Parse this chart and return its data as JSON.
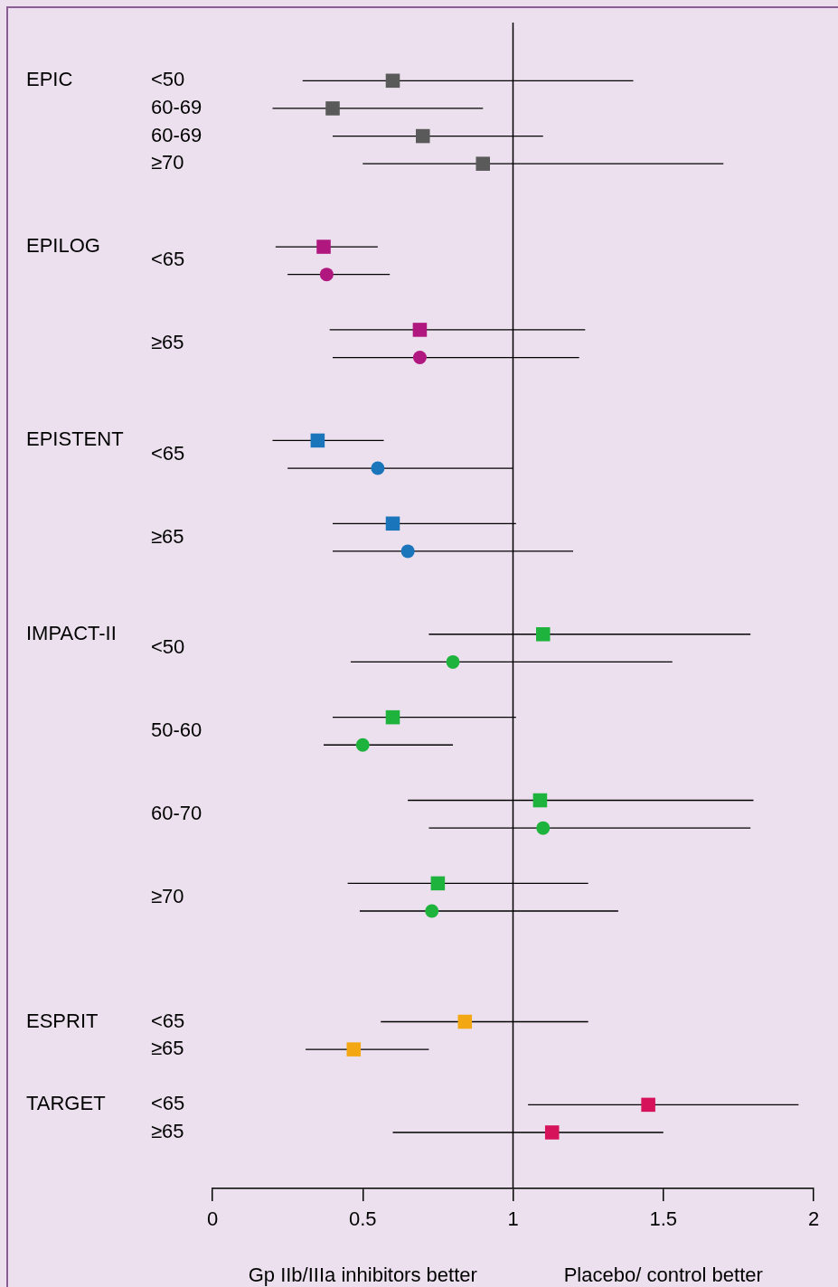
{
  "chart_data": {
    "type": "scatter",
    "orientation": "horizontal",
    "categories": [
      "<50",
      null,
      "60-69",
      null,
      "60-69",
      null,
      "≥70",
      null,
      null,
      null,
      null,
      null,
      null,
      "<65",
      null,
      null,
      null,
      null,
      null,
      "≥65",
      null,
      null,
      null,
      null,
      null,
      null,
      null,
      "<65",
      null,
      null,
      null,
      null,
      null,
      "≥65",
      null,
      null,
      null,
      null,
      null,
      null,
      null,
      "<50",
      null,
      null,
      null,
      null,
      null,
      "50-60",
      null,
      null,
      null,
      null,
      null,
      "60-70",
      null,
      null,
      null,
      null,
      null,
      "≥70",
      null,
      null,
      null,
      null,
      null,
      null,
      null,
      null,
      "<65",
      null,
      "≥65",
      null,
      null,
      null,
      "<65",
      null,
      "≥65"
    ],
    "y2_categories": [
      "EPIC",
      null,
      null,
      null,
      null,
      null,
      null,
      null,
      null,
      null,
      null,
      null,
      "EPILOG",
      null,
      null,
      null,
      null,
      null,
      null,
      null,
      null,
      null,
      null,
      null,
      null,
      null,
      "EPISTENT",
      null,
      null,
      null,
      null,
      null,
      null,
      null,
      null,
      null,
      null,
      null,
      null,
      null,
      "IMPACT-II",
      null,
      null,
      null,
      null,
      null,
      null,
      null,
      null,
      null,
      null,
      null,
      null,
      null,
      null,
      null,
      null,
      null,
      null,
      null,
      null,
      null,
      null,
      null,
      null,
      null,
      null,
      null,
      "ESPRIT",
      null,
      null,
      null,
      null,
      null,
      "TARGET",
      null,
      null
    ],
    "series": [
      {
        "marker": "square",
        "values": [
          0.6,
          null,
          0.4,
          null,
          0.7,
          null,
          0.9,
          null,
          null,
          null,
          null,
          null,
          0.37,
          null,
          null,
          null,
          null,
          null,
          0.69,
          null,
          null,
          null,
          null,
          null,
          null,
          null,
          0.35,
          null,
          null,
          null,
          null,
          null,
          0.6,
          null,
          null,
          null,
          null,
          null,
          null,
          null,
          1.1,
          null,
          null,
          null,
          null,
          null,
          0.6,
          null,
          null,
          null,
          null,
          null,
          1.09,
          null,
          null,
          null,
          null,
          null,
          0.75,
          null,
          null,
          null,
          null,
          null,
          null,
          null,
          null,
          null,
          0.84,
          null,
          0.47,
          null,
          null,
          null,
          1.45,
          null,
          1.13
        ],
        "errors": [
          [
            0.3,
            1.4
          ],
          null,
          [
            0.2,
            0.9
          ],
          null,
          [
            0.4,
            1.1
          ],
          null,
          [
            0.5,
            1.7
          ],
          null,
          null,
          null,
          null,
          null,
          [
            0.21,
            0.55
          ],
          null,
          null,
          null,
          null,
          null,
          [
            0.39,
            1.24
          ],
          null,
          null,
          null,
          null,
          null,
          null,
          null,
          [
            0.2,
            0.57
          ],
          null,
          null,
          null,
          null,
          null,
          [
            0.4,
            1.01
          ],
          null,
          null,
          null,
          null,
          null,
          null,
          null,
          [
            0.72,
            1.79
          ],
          null,
          null,
          null,
          null,
          null,
          [
            0.4,
            1.01
          ],
          null,
          null,
          null,
          null,
          null,
          [
            0.65,
            1.8
          ],
          null,
          null,
          null,
          null,
          null,
          [
            0.45,
            1.25
          ],
          null,
          null,
          null,
          null,
          null,
          null,
          null,
          null,
          null,
          [
            0.56,
            1.25
          ],
          null,
          [
            0.31,
            0.72
          ],
          null,
          null,
          null,
          [
            1.05,
            1.95
          ],
          null,
          [
            0.6,
            1.5
          ]
        ],
        "colors": [
          "#5a5a5a",
          null,
          "#5a5a5a",
          null,
          "#5a5a5a",
          null,
          "#5a5a5a",
          null,
          null,
          null,
          null,
          null,
          "#b0177f",
          null,
          null,
          null,
          null,
          null,
          "#b0177f",
          null,
          null,
          null,
          null,
          null,
          null,
          null,
          "#1a75bb",
          null,
          null,
          null,
          null,
          null,
          "#1a75bb",
          null,
          null,
          null,
          null,
          null,
          null,
          null,
          "#1db33c",
          null,
          null,
          null,
          null,
          null,
          "#1db33c",
          null,
          null,
          null,
          null,
          null,
          "#1db33c",
          null,
          null,
          null,
          null,
          null,
          "#1db33c",
          null,
          null,
          null,
          null,
          null,
          null,
          null,
          null,
          null,
          "#f3a712",
          null,
          "#f3a712",
          null,
          null,
          null,
          "#d6125a",
          null,
          "#d6125a"
        ]
      },
      {
        "marker": "circle",
        "values": [
          null,
          null,
          null,
          null,
          null,
          null,
          null,
          null,
          null,
          null,
          null,
          null,
          null,
          null,
          0.38,
          null,
          null,
          null,
          null,
          null,
          0.69,
          null,
          null,
          null,
          null,
          null,
          null,
          null,
          0.55,
          null,
          null,
          null,
          null,
          null,
          0.65,
          null,
          null,
          null,
          null,
          null,
          null,
          null,
          0.8,
          null,
          null,
          null,
          null,
          null,
          0.5,
          null,
          null,
          null,
          null,
          null,
          1.1,
          null,
          null,
          null,
          null,
          null,
          0.73,
          null,
          null,
          null,
          null,
          null,
          null,
          null,
          null,
          null,
          null,
          null,
          null,
          null,
          null,
          null,
          null
        ],
        "errors": [
          null,
          null,
          null,
          null,
          null,
          null,
          null,
          null,
          null,
          null,
          null,
          null,
          null,
          null,
          [
            0.25,
            0.59
          ],
          null,
          null,
          null,
          null,
          null,
          [
            0.4,
            1.22
          ],
          null,
          null,
          null,
          null,
          null,
          null,
          null,
          [
            0.25,
            1.0
          ],
          null,
          null,
          null,
          null,
          null,
          [
            0.4,
            1.2
          ],
          null,
          null,
          null,
          null,
          null,
          null,
          null,
          [
            0.46,
            1.53
          ],
          null,
          null,
          null,
          null,
          null,
          [
            0.37,
            0.8
          ],
          null,
          null,
          null,
          null,
          null,
          [
            0.72,
            1.79
          ],
          null,
          null,
          null,
          null,
          null,
          [
            0.49,
            1.35
          ],
          null,
          null,
          null,
          null,
          null,
          null,
          null,
          null,
          null,
          null,
          null,
          null,
          null,
          null,
          null,
          null
        ],
        "colors": [
          null,
          null,
          null,
          null,
          null,
          null,
          null,
          null,
          null,
          null,
          null,
          null,
          null,
          null,
          "#b0177f",
          null,
          null,
          null,
          null,
          null,
          "#b0177f",
          null,
          null,
          null,
          null,
          null,
          null,
          null,
          "#1a75bb",
          null,
          null,
          null,
          null,
          null,
          "#1a75bb",
          null,
          null,
          null,
          null,
          null,
          null,
          null,
          "#1db33c",
          null,
          null,
          null,
          null,
          null,
          "#1db33c",
          null,
          null,
          null,
          null,
          null,
          "#1db33c",
          null,
          null,
          null,
          null,
          null,
          "#1db33c",
          null,
          null,
          null,
          null,
          null,
          null,
          null,
          null,
          null,
          null,
          null,
          null,
          null,
          null,
          null,
          null
        ]
      }
    ],
    "xlim": [
      0,
      2
    ],
    "xticks": [
      0,
      0.5,
      1,
      1.5,
      2
    ],
    "ref_lines": [
      {
        "axis": "x",
        "value": 1,
        "color": "#000000"
      }
    ],
    "annotations": [
      "Gp IIb/IIIa inhibitors better",
      "Placebo/ control better"
    ]
  }
}
